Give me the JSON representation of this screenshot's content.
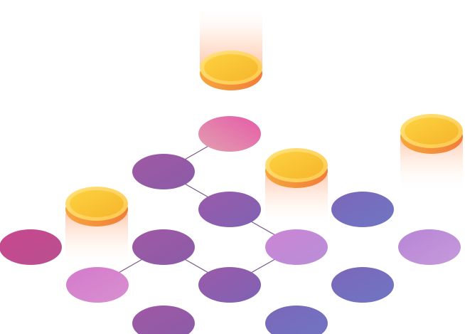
{
  "illustration": {
    "colors": {
      "coin_face_light": "#fde07a",
      "coin_face_dark": "#f7b733",
      "coin_rim": "#ff9f43",
      "coin_edge": "#f08a3a",
      "coin_glow": "#ff8c5a",
      "link_line": "#7a5a8a",
      "node_pink": "#e4609f",
      "node_magenta": "#c8488f",
      "node_purple": "#9a5aa8",
      "node_violet": "#7a6cbe",
      "node_lilac": "#c48ad6",
      "node_orchid": "#d77bc9"
    },
    "coins": [
      {
        "id": "coin-top"
      },
      {
        "id": "coin-right"
      },
      {
        "id": "coin-middle"
      },
      {
        "id": "coin-left"
      }
    ],
    "nodes": [
      {
        "id": "n1"
      },
      {
        "id": "n2"
      },
      {
        "id": "n3"
      },
      {
        "id": "n4"
      },
      {
        "id": "n5"
      },
      {
        "id": "n6"
      },
      {
        "id": "n7"
      },
      {
        "id": "n8"
      },
      {
        "id": "n9"
      },
      {
        "id": "n10"
      },
      {
        "id": "n11"
      },
      {
        "id": "n12"
      },
      {
        "id": "n13"
      },
      {
        "id": "n14"
      }
    ]
  }
}
